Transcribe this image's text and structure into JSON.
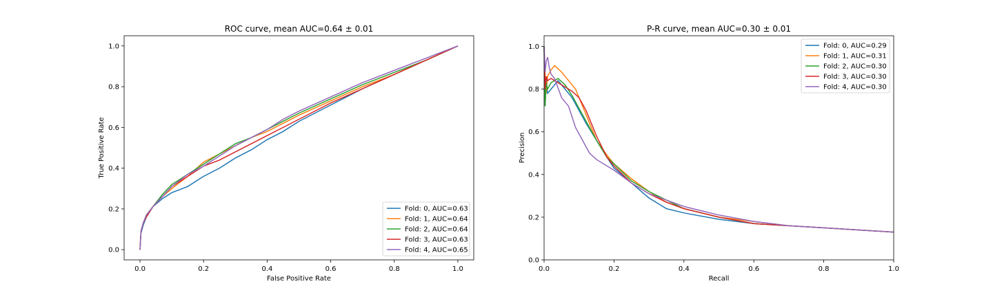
{
  "chart_data": [
    {
      "type": "line",
      "title": "ROC curve, mean AUC=0.64 ± 0.01",
      "xlabel": "False Positive Rate",
      "ylabel": "True Positive Rate",
      "xlim": [
        -0.05,
        1.05
      ],
      "ylim": [
        -0.05,
        1.05
      ],
      "xticks": [
        "0.0",
        "0.2",
        "0.4",
        "0.6",
        "0.8",
        "1.0"
      ],
      "yticks": [
        "0.0",
        "0.2",
        "0.4",
        "0.6",
        "0.8",
        "1.0"
      ],
      "grid": false,
      "legend_position": "lower right",
      "series": [
        {
          "name": "Fold: 0, AUC=0.63",
          "color": "#1f77b4",
          "x": [
            0,
            0.003,
            0.01,
            0.02,
            0.04,
            0.07,
            0.1,
            0.15,
            0.2,
            0.25,
            0.3,
            0.35,
            0.4,
            0.45,
            0.5,
            0.6,
            0.7,
            0.8,
            0.9,
            1.0
          ],
          "y": [
            0,
            0.08,
            0.12,
            0.16,
            0.21,
            0.25,
            0.28,
            0.31,
            0.36,
            0.4,
            0.45,
            0.49,
            0.54,
            0.58,
            0.63,
            0.71,
            0.79,
            0.86,
            0.93,
            1.0
          ]
        },
        {
          "name": "Fold: 1, AUC=0.64",
          "color": "#ff7f0e",
          "x": [
            0,
            0.003,
            0.01,
            0.02,
            0.04,
            0.07,
            0.1,
            0.15,
            0.2,
            0.25,
            0.3,
            0.35,
            0.4,
            0.45,
            0.5,
            0.6,
            0.7,
            0.8,
            0.9,
            1.0
          ],
          "y": [
            0,
            0.09,
            0.13,
            0.17,
            0.21,
            0.26,
            0.3,
            0.36,
            0.43,
            0.47,
            0.51,
            0.55,
            0.58,
            0.62,
            0.66,
            0.73,
            0.8,
            0.86,
            0.93,
            1.0
          ]
        },
        {
          "name": "Fold: 2, AUC=0.64",
          "color": "#2ca02c",
          "x": [
            0,
            0.003,
            0.01,
            0.02,
            0.04,
            0.07,
            0.1,
            0.15,
            0.2,
            0.25,
            0.3,
            0.35,
            0.4,
            0.45,
            0.5,
            0.6,
            0.7,
            0.8,
            0.9,
            1.0
          ],
          "y": [
            0,
            0.09,
            0.13,
            0.17,
            0.21,
            0.27,
            0.32,
            0.37,
            0.42,
            0.47,
            0.52,
            0.55,
            0.59,
            0.63,
            0.67,
            0.74,
            0.81,
            0.87,
            0.93,
            1.0
          ]
        },
        {
          "name": "Fold: 3, AUC=0.63",
          "color": "#d62728",
          "x": [
            0,
            0.003,
            0.01,
            0.02,
            0.04,
            0.07,
            0.1,
            0.15,
            0.2,
            0.25,
            0.3,
            0.35,
            0.4,
            0.45,
            0.5,
            0.6,
            0.7,
            0.8,
            0.9,
            1.0
          ],
          "y": [
            0,
            0.09,
            0.13,
            0.16,
            0.21,
            0.26,
            0.31,
            0.36,
            0.41,
            0.44,
            0.48,
            0.52,
            0.56,
            0.6,
            0.64,
            0.72,
            0.79,
            0.86,
            0.93,
            1.0
          ]
        },
        {
          "name": "Fold: 4, AUC=0.65",
          "color": "#9467bd",
          "x": [
            0,
            0.003,
            0.01,
            0.02,
            0.04,
            0.07,
            0.1,
            0.15,
            0.2,
            0.25,
            0.3,
            0.35,
            0.4,
            0.45,
            0.5,
            0.6,
            0.7,
            0.8,
            0.9,
            1.0
          ],
          "y": [
            0,
            0.09,
            0.13,
            0.17,
            0.21,
            0.26,
            0.31,
            0.37,
            0.41,
            0.46,
            0.51,
            0.55,
            0.59,
            0.64,
            0.68,
            0.75,
            0.82,
            0.88,
            0.94,
            1.0
          ]
        }
      ]
    },
    {
      "type": "line",
      "title": "P-R curve, mean AUC=0.30 ± 0.01",
      "xlabel": "Recall",
      "ylabel": "Precision",
      "xlim": [
        0,
        1
      ],
      "ylim": [
        0,
        1.05
      ],
      "xticks": [
        "0.0",
        "0.2",
        "0.4",
        "0.6",
        "0.8",
        "1.0"
      ],
      "yticks": [
        "0.0",
        "0.2",
        "0.4",
        "0.6",
        "0.8",
        "1.0"
      ],
      "grid": false,
      "legend_position": "upper right",
      "series": [
        {
          "name": "Fold: 0, AUC=0.29",
          "color": "#1f77b4",
          "x": [
            0,
            0.003,
            0.006,
            0.01,
            0.02,
            0.04,
            0.06,
            0.08,
            0.1,
            0.12,
            0.15,
            0.18,
            0.2,
            0.25,
            0.3,
            0.35,
            0.4,
            0.5,
            0.6,
            0.7,
            0.8,
            0.9,
            1.0
          ],
          "y": [
            1.0,
            0.72,
            0.85,
            0.78,
            0.8,
            0.84,
            0.8,
            0.76,
            0.7,
            0.64,
            0.56,
            0.48,
            0.43,
            0.36,
            0.29,
            0.24,
            0.22,
            0.19,
            0.17,
            0.16,
            0.15,
            0.14,
            0.13
          ]
        },
        {
          "name": "Fold: 1, AUC=0.31",
          "color": "#ff7f0e",
          "x": [
            0,
            0.003,
            0.006,
            0.01,
            0.02,
            0.03,
            0.05,
            0.07,
            0.09,
            0.12,
            0.15,
            0.18,
            0.2,
            0.25,
            0.3,
            0.35,
            0.4,
            0.5,
            0.6,
            0.7,
            0.8,
            0.9,
            1.0
          ],
          "y": [
            1.0,
            0.86,
            0.78,
            0.86,
            0.89,
            0.91,
            0.88,
            0.84,
            0.8,
            0.68,
            0.56,
            0.49,
            0.45,
            0.38,
            0.32,
            0.27,
            0.24,
            0.2,
            0.18,
            0.16,
            0.15,
            0.14,
            0.13
          ]
        },
        {
          "name": "Fold: 2, AUC=0.30",
          "color": "#2ca02c",
          "x": [
            0,
            0.003,
            0.006,
            0.01,
            0.02,
            0.04,
            0.06,
            0.08,
            0.1,
            0.12,
            0.15,
            0.18,
            0.2,
            0.25,
            0.3,
            0.35,
            0.4,
            0.5,
            0.6,
            0.7,
            0.8,
            0.9,
            1.0
          ],
          "y": [
            1.0,
            0.72,
            0.83,
            0.8,
            0.83,
            0.85,
            0.82,
            0.77,
            0.71,
            0.65,
            0.56,
            0.48,
            0.45,
            0.37,
            0.32,
            0.28,
            0.24,
            0.2,
            0.17,
            0.16,
            0.15,
            0.14,
            0.13
          ]
        },
        {
          "name": "Fold: 3, AUC=0.30",
          "color": "#d62728",
          "x": [
            0,
            0.003,
            0.006,
            0.01,
            0.02,
            0.04,
            0.06,
            0.08,
            0.1,
            0.12,
            0.15,
            0.18,
            0.2,
            0.25,
            0.3,
            0.35,
            0.4,
            0.5,
            0.6,
            0.7,
            0.8,
            0.9,
            1.0
          ],
          "y": [
            1.0,
            0.8,
            0.86,
            0.84,
            0.85,
            0.83,
            0.81,
            0.79,
            0.76,
            0.7,
            0.58,
            0.48,
            0.44,
            0.36,
            0.31,
            0.27,
            0.24,
            0.2,
            0.17,
            0.16,
            0.15,
            0.14,
            0.13
          ]
        },
        {
          "name": "Fold: 4, AUC=0.30",
          "color": "#9467bd",
          "x": [
            0,
            0.003,
            0.006,
            0.01,
            0.015,
            0.02,
            0.03,
            0.05,
            0.07,
            0.09,
            0.11,
            0.13,
            0.15,
            0.18,
            0.2,
            0.25,
            0.3,
            0.35,
            0.4,
            0.5,
            0.6,
            0.7,
            0.8,
            0.9,
            1.0
          ],
          "y": [
            1.0,
            0.88,
            0.93,
            0.95,
            0.9,
            0.87,
            0.85,
            0.76,
            0.72,
            0.62,
            0.56,
            0.5,
            0.47,
            0.44,
            0.42,
            0.36,
            0.31,
            0.28,
            0.25,
            0.21,
            0.18,
            0.16,
            0.15,
            0.14,
            0.13
          ]
        }
      ]
    }
  ]
}
